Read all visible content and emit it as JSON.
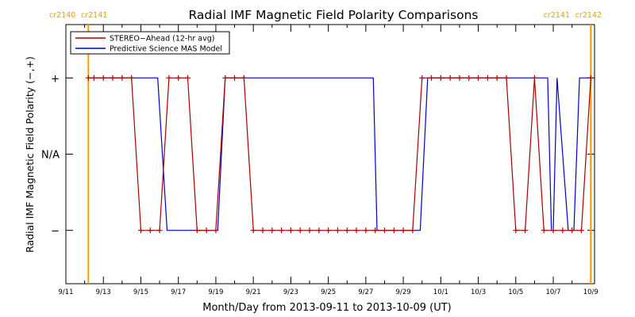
{
  "chart_data": {
    "type": "line",
    "title": "Radial IMF Magnetic Field Polarity Comparisons",
    "xlabel": "Month/Day from 2013-09-11 to 2013-10-09 (UT)",
    "ylabel": "Radial IMF Magnetic Field Polarity (−,+)",
    "x_unit": "days",
    "xlim": [
      0,
      28.2
    ],
    "ylim": [
      -1.7,
      1.7
    ],
    "x_ticks": [
      {
        "x": 0,
        "label": "9/11"
      },
      {
        "x": 2,
        "label": "9/13"
      },
      {
        "x": 4,
        "label": "9/15"
      },
      {
        "x": 6,
        "label": "9/17"
      },
      {
        "x": 8,
        "label": "9/19"
      },
      {
        "x": 10,
        "label": "9/21"
      },
      {
        "x": 12,
        "label": "9/23"
      },
      {
        "x": 14,
        "label": "9/25"
      },
      {
        "x": 16,
        "label": "9/27"
      },
      {
        "x": 18,
        "label": "9/29"
      },
      {
        "x": 20,
        "label": "10/1"
      },
      {
        "x": 22,
        "label": "10/3"
      },
      {
        "x": 24,
        "label": "10/5"
      },
      {
        "x": 26,
        "label": "10/7"
      },
      {
        "x": 28,
        "label": "10/9"
      }
    ],
    "y_ticks": [
      {
        "y": 1,
        "label": "+"
      },
      {
        "y": 0,
        "label": "N/A"
      },
      {
        "y": -1,
        "label": "−"
      }
    ],
    "legend": {
      "position": "top-left"
    },
    "markers": [
      {
        "x": 1.2,
        "labels": [
          "cr2140",
          "cr2141"
        ],
        "color": "#ff9900",
        "label_align": "left"
      },
      {
        "x": 28.0,
        "labels": [
          "cr2141",
          "cr2142"
        ],
        "color": "#ff9900",
        "label_align": "right"
      }
    ],
    "series": [
      {
        "name": "STEREO−Ahead (12-hr avg)",
        "color": "#aa0000",
        "marker": "plus",
        "points": [
          [
            1.2,
            1
          ],
          [
            1.5,
            1
          ],
          [
            2.0,
            1
          ],
          [
            2.5,
            1
          ],
          [
            3.0,
            1
          ],
          [
            3.5,
            1
          ],
          [
            4.0,
            -1
          ],
          [
            4.5,
            -1
          ],
          [
            5.0,
            -1
          ],
          [
            5.5,
            1
          ],
          [
            6.0,
            1
          ],
          [
            6.5,
            1
          ],
          [
            7.0,
            -1
          ],
          [
            7.5,
            -1
          ],
          [
            8.0,
            -1
          ],
          [
            8.5,
            1
          ],
          [
            9.0,
            1
          ],
          [
            9.5,
            1
          ],
          [
            10.0,
            -1
          ],
          [
            10.5,
            -1
          ],
          [
            11.0,
            -1
          ],
          [
            11.5,
            -1
          ],
          [
            12.0,
            -1
          ],
          [
            12.5,
            -1
          ],
          [
            13.0,
            -1
          ],
          [
            13.5,
            -1
          ],
          [
            14.0,
            -1
          ],
          [
            14.5,
            -1
          ],
          [
            15.0,
            -1
          ],
          [
            15.5,
            -1
          ],
          [
            16.0,
            -1
          ],
          [
            16.5,
            -1
          ],
          [
            17.0,
            -1
          ],
          [
            17.5,
            -1
          ],
          [
            18.0,
            -1
          ],
          [
            18.5,
            -1
          ],
          [
            19.0,
            1
          ],
          [
            19.5,
            1
          ],
          [
            20.0,
            1
          ],
          [
            20.5,
            1
          ],
          [
            21.0,
            1
          ],
          [
            21.5,
            1
          ],
          [
            22.0,
            1
          ],
          [
            22.5,
            1
          ],
          [
            23.0,
            1
          ],
          [
            23.5,
            1
          ],
          [
            24.0,
            -1
          ],
          [
            24.5,
            -1
          ],
          [
            25.0,
            1
          ],
          [
            25.5,
            -1
          ],
          [
            26.0,
            -1
          ],
          [
            26.5,
            -1
          ],
          [
            27.0,
            -1
          ],
          [
            27.5,
            -1
          ],
          [
            28.0,
            1
          ]
        ]
      },
      {
        "name": "Predictive Science MAS Model",
        "color": "#0000cc",
        "marker": "none",
        "points": [
          [
            1.2,
            1
          ],
          [
            4.9,
            1
          ],
          [
            5.4,
            -1
          ],
          [
            8.1,
            -1
          ],
          [
            8.5,
            1
          ],
          [
            16.4,
            1
          ],
          [
            16.6,
            -1
          ],
          [
            18.9,
            -1
          ],
          [
            19.3,
            1
          ],
          [
            25.7,
            1
          ],
          [
            25.9,
            -1
          ],
          [
            26.0,
            -1
          ],
          [
            26.2,
            1
          ],
          [
            26.8,
            -1
          ],
          [
            27.1,
            -1
          ],
          [
            27.4,
            1
          ],
          [
            28.0,
            1
          ]
        ]
      }
    ]
  }
}
